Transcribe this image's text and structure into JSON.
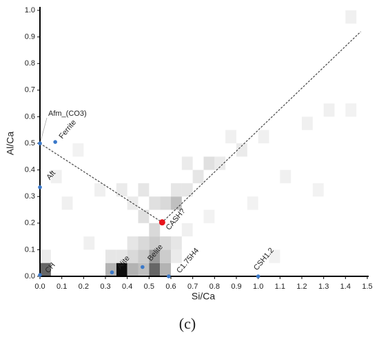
{
  "chart_data": {
    "type": "scatter",
    "xlabel": "Si/Ca",
    "ylabel": "Al/Ca",
    "caption": "(c)",
    "xlim": [
      0,
      1.5
    ],
    "ylim": [
      0,
      1.0
    ],
    "xticks": [
      {
        "value": 0,
        "label": "0.0"
      },
      0.1,
      0.2,
      0.3,
      0.4,
      0.5,
      0.6,
      0.7,
      0.8,
      0.9,
      {
        "value": 1,
        "label": "1.0"
      },
      1.1,
      1.2,
      1.3,
      1.4,
      1.5
    ],
    "yticks": [
      {
        "value": 0,
        "label": "0.0"
      },
      0.1,
      0.2,
      0.3,
      0.4,
      0.5,
      0.6,
      0.7,
      0.8,
      0.9,
      {
        "value": 1,
        "label": "1.0"
      }
    ],
    "points": [
      {
        "label": "Afm_(CO3)",
        "x": 0,
        "y": 0.5,
        "color": "#3a78c9"
      },
      {
        "label": "Ferrite",
        "x": 0.07,
        "y": 0.505,
        "color": "#3a78c9"
      },
      {
        "label": "Aft",
        "x": 0,
        "y": 0.335,
        "color": "#3a78c9"
      },
      {
        "label": "CH",
        "x": 0,
        "y": 0.005,
        "color": "#3a78c9"
      },
      {
        "label": "Alite",
        "x": 0.33,
        "y": 0.015,
        "color": "#3a78c9"
      },
      {
        "label": "Belite",
        "x": 0.47,
        "y": 0.035,
        "color": "#3a78c9"
      },
      {
        "label": "C1.75H4",
        "x": 0.59,
        "y": 0,
        "color": "#3a78c9"
      },
      {
        "label": "CSH1.2",
        "x": 1.0,
        "y": 0,
        "color": "#3a78c9"
      },
      {
        "label": "CASH?",
        "x": 0.56,
        "y": 0.203,
        "color": "#e8141c"
      }
    ],
    "line": {
      "x": [
        0,
        0.56,
        1.47
      ],
      "y": [
        0.5,
        0.203,
        0.92
      ],
      "color": "#444444"
    },
    "heatmap": [
      {
        "x": 0.35,
        "y": 0,
        "v": 0.95
      },
      {
        "x": 0.3,
        "y": 0,
        "v": 0.3
      },
      {
        "x": 0.4,
        "y": 0,
        "v": 0.3
      },
      {
        "x": 0.5,
        "y": 0,
        "v": 0.6
      },
      {
        "x": 0.45,
        "y": 0,
        "v": 0.25
      },
      {
        "x": 0.55,
        "y": 0,
        "v": 0.3
      },
      {
        "x": 0.5,
        "y": 0.05,
        "v": 0.4
      },
      {
        "x": 0.45,
        "y": 0.05,
        "v": 0.2
      },
      {
        "x": 0.55,
        "y": 0.05,
        "v": 0.2
      },
      {
        "x": 0.4,
        "y": 0.05,
        "v": 0.15
      },
      {
        "x": 0.35,
        "y": 0.05,
        "v": 0.1
      },
      {
        "x": 0.3,
        "y": 0.05,
        "v": 0.1
      },
      {
        "x": 0.5,
        "y": 0.1,
        "v": 0.2
      },
      {
        "x": 0.45,
        "y": 0.1,
        "v": 0.15
      },
      {
        "x": 0.4,
        "y": 0.1,
        "v": 0.1
      },
      {
        "x": 0.55,
        "y": 0.1,
        "v": 0.15
      },
      {
        "x": 0.6,
        "y": 0.1,
        "v": 0.1
      },
      {
        "x": 0.5,
        "y": 0.15,
        "v": 0.15
      },
      {
        "x": 0.45,
        "y": 0.2,
        "v": 0.12
      },
      {
        "x": 0.55,
        "y": 0.25,
        "v": 0.15
      },
      {
        "x": 0.6,
        "y": 0.25,
        "v": 0.25
      },
      {
        "x": 0.5,
        "y": 0.25,
        "v": 0.12
      },
      {
        "x": 0.45,
        "y": 0.3,
        "v": 0.1
      },
      {
        "x": 0.4,
        "y": 0.25,
        "v": 0.08
      },
      {
        "x": 0.35,
        "y": 0.3,
        "v": 0.08
      },
      {
        "x": 0.6,
        "y": 0.3,
        "v": 0.1
      },
      {
        "x": 0.65,
        "y": 0.3,
        "v": 0.1
      },
      {
        "x": 0.7,
        "y": 0.35,
        "v": 0.1
      },
      {
        "x": 0.75,
        "y": 0.4,
        "v": 0.12
      },
      {
        "x": 0.8,
        "y": 0.4,
        "v": 0.08
      },
      {
        "x": 0.65,
        "y": 0.4,
        "v": 0.08
      },
      {
        "x": 0.9,
        "y": 0.45,
        "v": 0.08
      },
      {
        "x": 0.85,
        "y": 0.5,
        "v": 0.06
      },
      {
        "x": 1.0,
        "y": 0.5,
        "v": 0.06
      },
      {
        "x": 1.2,
        "y": 0.55,
        "v": 0.06
      },
      {
        "x": 1.3,
        "y": 0.6,
        "v": 0.06
      },
      {
        "x": 1.4,
        "y": 0.6,
        "v": 0.05
      },
      {
        "x": 1.1,
        "y": 0.35,
        "v": 0.06
      },
      {
        "x": 1.25,
        "y": 0.3,
        "v": 0.05
      },
      {
        "x": 0.1,
        "y": 0.25,
        "v": 0.06
      },
      {
        "x": 0.05,
        "y": 0.35,
        "v": 0.06
      },
      {
        "x": 0.15,
        "y": 0.45,
        "v": 0.05
      },
      {
        "x": 0.2,
        "y": 0.1,
        "v": 0.06
      },
      {
        "x": 0.25,
        "y": 0.3,
        "v": 0.06
      },
      {
        "x": 0,
        "y": 0.05,
        "v": 0.08
      },
      {
        "x": 0.6,
        "y": 0.05,
        "v": 0.08
      },
      {
        "x": 0.65,
        "y": 0.15,
        "v": 0.06
      },
      {
        "x": 0.75,
        "y": 0.2,
        "v": 0.05
      },
      {
        "x": 0.95,
        "y": 0.25,
        "v": 0.05
      },
      {
        "x": 1.4,
        "y": 0.95,
        "v": 0.06
      },
      {
        "x": 1.05,
        "y": 0.05,
        "v": 0.05
      },
      {
        "x": 0,
        "y": 0,
        "v": 0.6
      }
    ]
  }
}
